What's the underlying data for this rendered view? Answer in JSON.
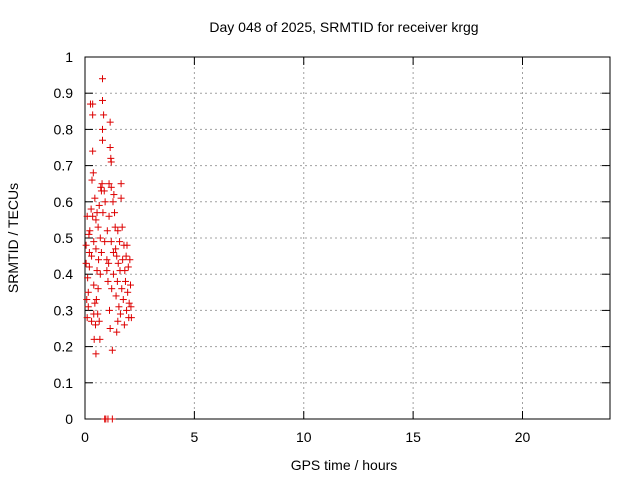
{
  "chart_data": {
    "type": "scatter",
    "title": "Day 048 of 2025, SRMTID for receiver krgg",
    "xlabel": "GPS time / hours",
    "ylabel": "SRMTID / TECUs",
    "xlim": [
      0,
      24
    ],
    "ylim": [
      0,
      1
    ],
    "x_ticks": [
      0,
      5,
      10,
      15,
      20
    ],
    "x_tick_labels": [
      "0",
      "5",
      "10",
      "15",
      "20"
    ],
    "y_ticks": [
      0,
      0.1,
      0.2,
      0.3,
      0.4,
      0.5,
      0.6,
      0.7,
      0.8,
      0.9,
      1
    ],
    "y_tick_labels": [
      "0",
      "0.1",
      "0.2",
      "0.3",
      "0.4",
      "0.5",
      "0.6",
      "0.7",
      "0.8",
      "0.9",
      "1"
    ],
    "grid": true,
    "marker": "+",
    "color": "#dd0000",
    "series": [
      {
        "name": "SRMTID",
        "points": [
          [
            0.05,
            0.48
          ],
          [
            0.05,
            0.43
          ],
          [
            0.08,
            0.33
          ],
          [
            0.1,
            0.56
          ],
          [
            0.1,
            0.28
          ],
          [
            0.12,
            0.39
          ],
          [
            0.15,
            0.35
          ],
          [
            0.15,
            0.31
          ],
          [
            0.18,
            0.51
          ],
          [
            0.2,
            0.46
          ],
          [
            0.2,
            0.42
          ],
          [
            0.22,
            0.52
          ],
          [
            0.25,
            0.87
          ],
          [
            0.28,
            0.58
          ],
          [
            0.3,
            0.45
          ],
          [
            0.3,
            0.27
          ],
          [
            0.32,
            0.66
          ],
          [
            0.35,
            0.87
          ],
          [
            0.35,
            0.84
          ],
          [
            0.35,
            0.74
          ],
          [
            0.35,
            0.56
          ],
          [
            0.38,
            0.68
          ],
          [
            0.4,
            0.49
          ],
          [
            0.4,
            0.37
          ],
          [
            0.4,
            0.29
          ],
          [
            0.42,
            0.22
          ],
          [
            0.45,
            0.61
          ],
          [
            0.45,
            0.32
          ],
          [
            0.48,
            0.26
          ],
          [
            0.5,
            0.47
          ],
          [
            0.5,
            0.55
          ],
          [
            0.5,
            0.18
          ],
          [
            0.52,
            0.33
          ],
          [
            0.55,
            0.41
          ],
          [
            0.55,
            0.57
          ],
          [
            0.58,
            0.29
          ],
          [
            0.6,
            0.53
          ],
          [
            0.6,
            0.36
          ],
          [
            0.62,
            0.44
          ],
          [
            0.65,
            0.59
          ],
          [
            0.65,
            0.27
          ],
          [
            0.68,
            0.22
          ],
          [
            0.7,
            0.5
          ],
          [
            0.7,
            0.4
          ],
          [
            0.72,
            0.64
          ],
          [
            0.75,
            0.63
          ],
          [
            0.75,
            0.46
          ],
          [
            0.78,
            0.65
          ],
          [
            0.8,
            0.94
          ],
          [
            0.8,
            0.88
          ],
          [
            0.8,
            0.8
          ],
          [
            0.8,
            0.77
          ],
          [
            0.82,
            0.57
          ],
          [
            0.85,
            0.84
          ],
          [
            0.88,
            0.63
          ],
          [
            0.9,
            0.49
          ],
          [
            0.9,
            0.0
          ],
          [
            0.92,
            0.6
          ],
          [
            0.95,
            0.0
          ],
          [
            1.0,
            0.44
          ],
          [
            1.0,
            0.41
          ],
          [
            1.02,
            0.52
          ],
          [
            1.05,
            0.38
          ],
          [
            1.05,
            0.0
          ],
          [
            1.08,
            0.43
          ],
          [
            1.1,
            0.65
          ],
          [
            1.1,
            0.56
          ],
          [
            1.12,
            0.3
          ],
          [
            1.15,
            0.82
          ],
          [
            1.15,
            0.75
          ],
          [
            1.15,
            0.25
          ],
          [
            1.18,
            0.72
          ],
          [
            1.2,
            0.71
          ],
          [
            1.2,
            0.64
          ],
          [
            1.2,
            0.49
          ],
          [
            1.22,
            0.36
          ],
          [
            1.25,
            0.19
          ],
          [
            1.25,
            0.0
          ],
          [
            1.28,
            0.6
          ],
          [
            1.3,
            0.46
          ],
          [
            1.3,
            0.4
          ],
          [
            1.32,
            0.62
          ],
          [
            1.35,
            0.57
          ],
          [
            1.38,
            0.53
          ],
          [
            1.4,
            0.47
          ],
          [
            1.42,
            0.34
          ],
          [
            1.45,
            0.45
          ],
          [
            1.45,
            0.24
          ],
          [
            1.48,
            0.38
          ],
          [
            1.5,
            0.52
          ],
          [
            1.5,
            0.27
          ],
          [
            1.52,
            0.43
          ],
          [
            1.55,
            0.31
          ],
          [
            1.58,
            0.49
          ],
          [
            1.6,
            0.41
          ],
          [
            1.62,
            0.29
          ],
          [
            1.65,
            0.65
          ],
          [
            1.65,
            0.61
          ],
          [
            1.68,
            0.36
          ],
          [
            1.7,
            0.53
          ],
          [
            1.72,
            0.44
          ],
          [
            1.75,
            0.33
          ],
          [
            1.78,
            0.48
          ],
          [
            1.8,
            0.26
          ],
          [
            1.82,
            0.41
          ],
          [
            1.85,
            0.38
          ],
          [
            1.88,
            0.45
          ],
          [
            1.9,
            0.3
          ],
          [
            1.92,
            0.48
          ],
          [
            1.95,
            0.35
          ],
          [
            1.98,
            0.42
          ],
          [
            2.0,
            0.28
          ],
          [
            2.02,
            0.32
          ],
          [
            2.05,
            0.44
          ],
          [
            2.08,
            0.37
          ],
          [
            2.1,
            0.31
          ],
          [
            2.12,
            0.28
          ]
        ]
      }
    ]
  }
}
